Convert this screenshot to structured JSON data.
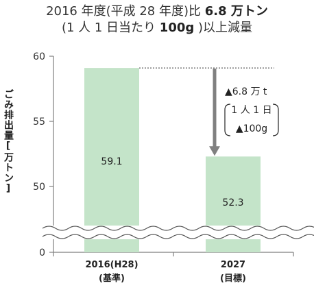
{
  "title": {
    "line1_prefix": "2016 年度(平成 28 年度)比",
    "line1_value": "6.8 万トン",
    "line2_prefix": "(1 人 1 日当たり",
    "line2_value": "100g",
    "line2_suffix": ")以上減量"
  },
  "ylabel": "ごみ排出量[万トン]",
  "annotation": {
    "total": "▲6.8 万 t",
    "per_person_label": "1 人 1 日",
    "per_person_value": "▲100g"
  },
  "colors": {
    "bar": "#c4e4c9",
    "arrow": "#808080",
    "axis": "#7f7f7f"
  },
  "chart_data": {
    "type": "bar",
    "categories": [
      "2016(H28)",
      "2027"
    ],
    "category_sublabels": [
      "(基準)",
      "(目標)"
    ],
    "values": [
      59.1,
      52.3
    ],
    "value_labels": [
      "59.1",
      "52.3"
    ],
    "yticks": [
      0,
      50,
      55,
      60
    ],
    "ylim": [
      0,
      60
    ],
    "axis_break": true,
    "grid": false,
    "legend": "none"
  }
}
